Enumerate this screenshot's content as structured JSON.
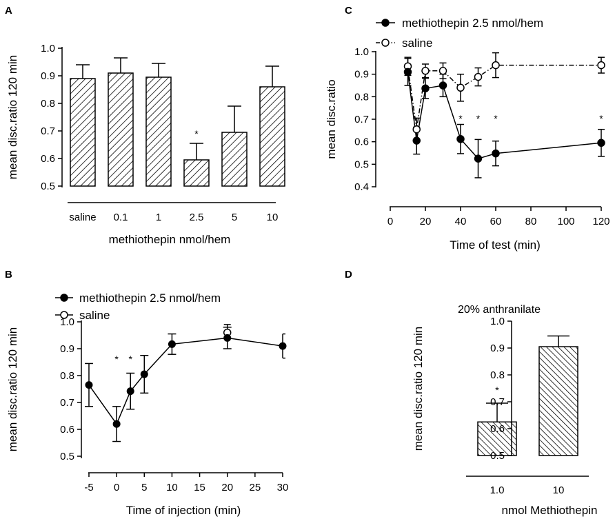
{
  "chart_data": [
    {
      "panel": "A",
      "type": "bar",
      "title": "",
      "xlabel": "methiothepin nmol/hem",
      "ylabel": "mean disc.ratio 120 min",
      "ylim": [
        0.5,
        1.0
      ],
      "yticks": [
        "0.5",
        "0.6",
        "0.7",
        "0.8",
        "0.9",
        "1.0"
      ],
      "categories": [
        "saline",
        "0.1",
        "1",
        "2.5",
        "5",
        "10"
      ],
      "values": [
        0.89,
        0.91,
        0.895,
        0.595,
        0.695,
        0.86
      ],
      "errors": [
        0.05,
        0.055,
        0.05,
        0.06,
        0.095,
        0.075
      ],
      "significance": [
        "",
        "",
        "",
        "*",
        "",
        ""
      ],
      "pattern": "diagonal hatch"
    },
    {
      "panel": "B",
      "type": "line",
      "title": "",
      "xlabel": "Time of injection  (min)",
      "ylabel": "mean disc.ratio 120 min",
      "xlim": [
        -5,
        30
      ],
      "ylim": [
        0.5,
        1.0
      ],
      "xticks": [
        "-5",
        "0",
        "5",
        "10",
        "15",
        "20",
        "25",
        "30"
      ],
      "yticks": [
        "0.5",
        "0.6",
        "0.7",
        "0.8",
        "0.9",
        "1.0"
      ],
      "legend": [
        "methiothepin 2.5 nmol/hem",
        "saline"
      ],
      "series": [
        {
          "name": "methiothepin 2.5 nmol/hem",
          "marker": "filled",
          "x": [
            -5,
            0,
            2.5,
            5,
            10,
            20,
            30
          ],
          "y": [
            0.765,
            0.62,
            0.742,
            0.805,
            0.917,
            0.94,
            0.91
          ],
          "err": [
            0.08,
            0.065,
            0.067,
            0.07,
            0.038,
            0.04,
            0.045
          ]
        },
        {
          "name": "saline",
          "marker": "open",
          "x": [
            20
          ],
          "y": [
            0.96
          ],
          "err": [
            0.03
          ]
        }
      ],
      "significance": [
        {
          "x": 0,
          "label": "*"
        },
        {
          "x": 2.5,
          "label": "*"
        }
      ]
    },
    {
      "panel": "C",
      "type": "line",
      "title": "",
      "xlabel": "Time of test (min)",
      "ylabel": "mean disc.ratio",
      "xlim": [
        0,
        120
      ],
      "ylim": [
        0.4,
        1.0
      ],
      "xticks": [
        "0",
        "20",
        "40",
        "60",
        "80",
        "100",
        "120"
      ],
      "yticks": [
        "0.4",
        "0.5",
        "0.6",
        "0.7",
        "0.8",
        "0.9",
        "1.0"
      ],
      "legend": [
        "methiothepin 2.5 nmol/hem",
        "saline"
      ],
      "series": [
        {
          "name": "methiothepin 2.5 nmol/hem",
          "marker": "filled",
          "line": "solid",
          "x": [
            10,
            15,
            20,
            30,
            40,
            50,
            60,
            120
          ],
          "y": [
            0.91,
            0.605,
            0.837,
            0.85,
            0.612,
            0.525,
            0.548,
            0.595
          ],
          "err": [
            0.06,
            0.06,
            0.045,
            0.05,
            0.065,
            0.085,
            0.055,
            0.06
          ]
        },
        {
          "name": "saline",
          "marker": "open",
          "line": "dash-dot",
          "x": [
            10,
            15,
            20,
            30,
            40,
            50,
            60,
            120
          ],
          "y": [
            0.935,
            0.655,
            0.915,
            0.915,
            0.84,
            0.888,
            0.94,
            0.94
          ],
          "err": [
            0.04,
            0.05,
            0.03,
            0.035,
            0.06,
            0.04,
            0.055,
            0.035
          ]
        }
      ],
      "significance": [
        {
          "x": 40,
          "label": "*"
        },
        {
          "x": 50,
          "label": "*"
        },
        {
          "x": 60,
          "label": "*"
        },
        {
          "x": 120,
          "label": "*"
        }
      ]
    },
    {
      "panel": "D",
      "type": "bar",
      "title": "20% anthranilate",
      "xlabel": "nmol Methiothepin",
      "ylabel": "mean disc.ratio 120 min",
      "ylim": [
        0.5,
        1.0
      ],
      "yticks": [
        "0.5",
        "0.6",
        "0.7",
        "0.8",
        "0.9",
        "1.0"
      ],
      "categories": [
        "1.0",
        "10"
      ],
      "values": [
        0.625,
        0.905
      ],
      "errors": [
        0.07,
        0.04
      ],
      "significance": [
        "*",
        ""
      ],
      "pattern": "diagonal hatch"
    }
  ]
}
